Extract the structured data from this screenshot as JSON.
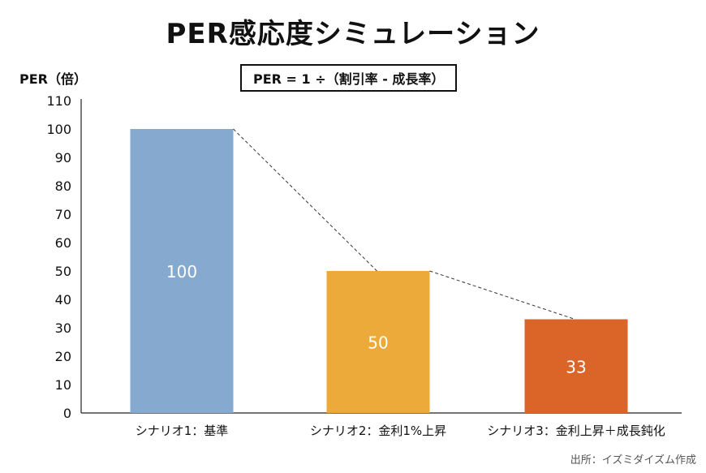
{
  "chart_data": {
    "type": "bar",
    "title": "PER感応度シミュレーション",
    "ylabel": "PER（倍）",
    "formula": "PER = 1 ÷（割引率 - 成長率）",
    "categories": [
      "シナリオ1：基準",
      "シナリオ2：金利1%上昇",
      "シナリオ3：金利上昇＋成長鈍化"
    ],
    "values": [
      100,
      50,
      33
    ],
    "data_labels": [
      "100",
      "50",
      "33"
    ],
    "colors": [
      "#86A9D0",
      "#ECAA3A",
      "#DB6429"
    ],
    "ylim": [
      0,
      110
    ],
    "yticks": [
      "0",
      "10",
      "20",
      "30",
      "40",
      "50",
      "60",
      "70",
      "80",
      "90",
      "100",
      "110"
    ],
    "grid": false,
    "connector": "dashed",
    "source": "出所：イズミダイズム作成"
  }
}
